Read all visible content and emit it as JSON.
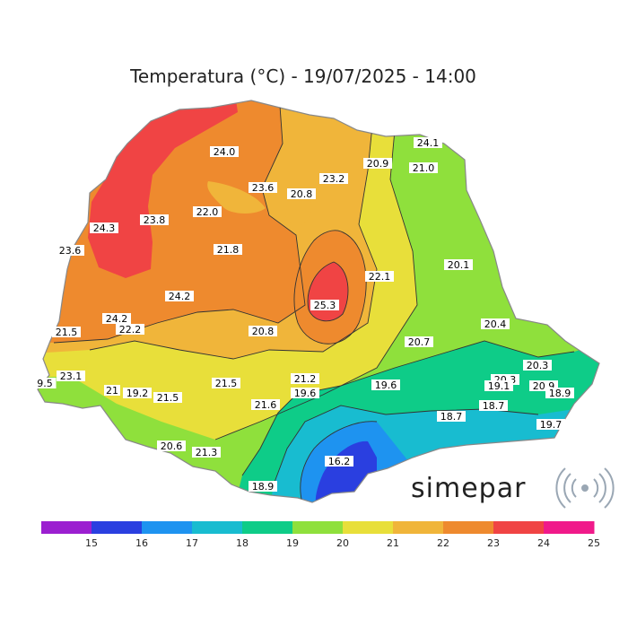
{
  "title": "Temperatura (°C) - 19/07/2025 - 14:00",
  "brand": {
    "name": "simepar",
    "logo_icon": "signal-waves-icon"
  },
  "colorbar": {
    "ticks": [
      "15",
      "16",
      "17",
      "18",
      "19",
      "20",
      "21",
      "22",
      "23",
      "24",
      "25"
    ],
    "colors": [
      "#9b1fd0",
      "#2a3fe0",
      "#1e93f0",
      "#18bcd0",
      "#0ecc88",
      "#8fe03c",
      "#e8df3a",
      "#f0b53a",
      "#ee8a2e",
      "#f04444",
      "#f01a8a"
    ]
  },
  "zone_colors": {
    "t18": "#18bcd0",
    "t19": "#0ecc88",
    "t20": "#8fe03c",
    "t21": "#e8df3a",
    "t22": "#f0b53a",
    "t23": "#ee8a2e",
    "t24": "#f04444",
    "t16": "#2a3fe0",
    "t17": "#1e93f0"
  },
  "station_values": [
    "24.0",
    "24.1",
    "20.9",
    "21.0",
    "23.6",
    "20.8",
    "23.2",
    "24.3",
    "23.8",
    "22.0",
    "23.6",
    "21.8",
    "20.1",
    "22.1",
    "24.2",
    "25.3",
    "24.2",
    "22.2",
    "21.5",
    "20.8",
    "20.4",
    "20.7",
    "20.3",
    "9.5",
    "23.1",
    "21",
    "19.2",
    "21.5",
    "21.5",
    "21.2",
    "19.6",
    "19.6",
    "20.3",
    "19.1",
    "20.9",
    "18.9",
    "21.6",
    "18.7",
    "18.7",
    "19.7",
    "20.6",
    "21.3",
    "16.2",
    "18.9"
  ]
}
